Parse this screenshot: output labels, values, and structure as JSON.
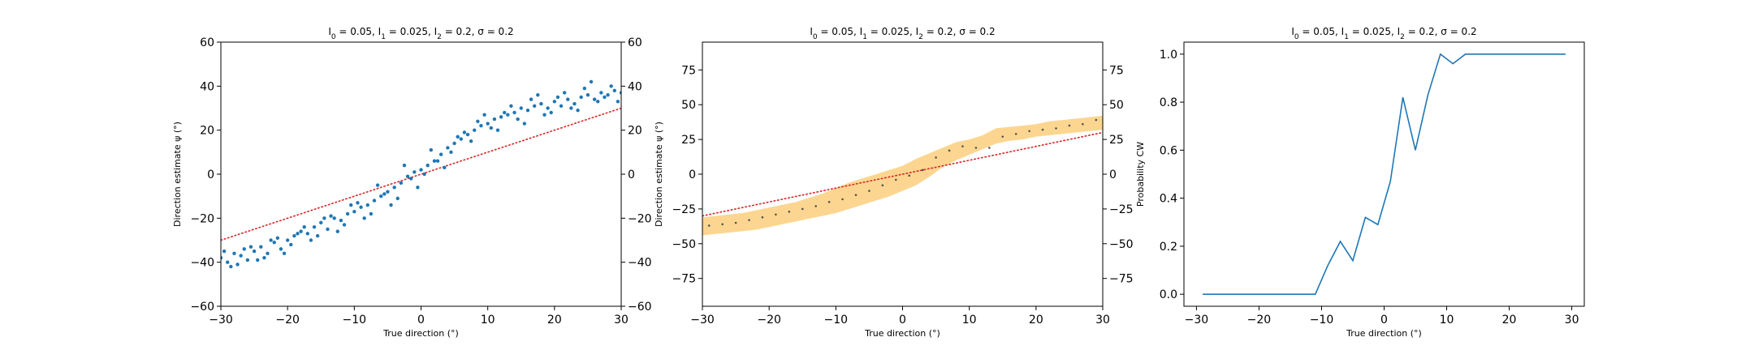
{
  "chart_data": [
    {
      "type": "scatter",
      "title": "I_0 = 0.05, I_1 = 0.025, I_2 = 0.2, σ = 0.2",
      "xlabel": "True direction (°)",
      "ylabel": "Direction estimate ψ (°)",
      "xlim": [
        -30,
        30
      ],
      "ylim": [
        -60,
        60
      ],
      "xticks": [
        "−30",
        "−20",
        "−10",
        "0",
        "10",
        "20",
        "30"
      ],
      "yticks": [
        "−60",
        "−40",
        "−20",
        "0",
        "20",
        "40",
        "60"
      ],
      "right_yticks": [
        "−60",
        "−40",
        "−20",
        "0",
        "20",
        "40",
        "60"
      ],
      "colors": {
        "points": "#1f77b4",
        "reference": "#d62728"
      },
      "reference_line": {
        "x": [
          -30,
          30
        ],
        "y": [
          -30,
          30
        ],
        "style": "dotted"
      },
      "series": [
        {
          "x": [
            -30,
            -29,
            -28,
            -27,
            -26,
            -25,
            -24,
            -23,
            -22,
            -21,
            -20,
            -19,
            -18,
            -17,
            -16,
            -15,
            -14,
            -13,
            -12,
            -11,
            -10,
            -9,
            -8,
            -7,
            -6,
            -5,
            -4,
            -3,
            -2,
            -1,
            0,
            1,
            2,
            3,
            4,
            5,
            6,
            7,
            8,
            9,
            10,
            11,
            12,
            13,
            14,
            15,
            16,
            17,
            18,
            19,
            20,
            21,
            22,
            23,
            24,
            25,
            26,
            27,
            28,
            29,
            30,
            -29.5,
            -27.5,
            -25.5,
            -23.5,
            -21.5,
            -19.5,
            -17.5,
            -15.5,
            -13.5,
            -11.5,
            -9.5,
            -7.5,
            -5.5,
            -3.5,
            -1.5,
            0.5,
            2.5,
            4.5,
            6.5,
            8.5,
            10.5,
            12.5,
            14.5,
            16.5,
            18.5,
            20.5,
            22.5,
            24.5,
            26.5,
            28.5,
            -28.5,
            -26.5,
            -24.5,
            -22.5,
            -20.5,
            -18.5,
            -16.5,
            -14.5,
            -12.5,
            -10.5,
            -8.5,
            -6.5,
            -4.5,
            -2.5,
            -0.5,
            1.5,
            3.5,
            5.5,
            7.5,
            9.5,
            11.5,
            13.5,
            15.5,
            17.5,
            19.5,
            21.5,
            23.5,
            25.5,
            27.5,
            29.5
          ],
          "y": [
            -38,
            -40,
            -36,
            -37,
            -39,
            -35,
            -33,
            -36,
            -31,
            -34,
            -30,
            -28,
            -26,
            -27,
            -24,
            -22,
            -25,
            -20,
            -21,
            -18,
            -17,
            -15,
            -14,
            -12,
            -10,
            -8,
            -6,
            -4,
            -1,
            1,
            2,
            4,
            6,
            9,
            12,
            14,
            16,
            18,
            20,
            22,
            23,
            25,
            26,
            27,
            28,
            30,
            29,
            31,
            32,
            30,
            33,
            31,
            34,
            32,
            35,
            36,
            34,
            37,
            36,
            38,
            37,
            -35,
            -41,
            -33,
            -38,
            -29,
            -32,
            -24,
            -28,
            -19,
            -23,
            -13,
            -18,
            -9,
            -11,
            -2,
            0,
            6,
            10,
            19,
            24,
            21,
            28,
            25,
            34,
            27,
            35,
            30,
            39,
            33,
            40,
            -42,
            -34,
            -39,
            -30,
            -36,
            -27,
            -30,
            -20,
            -26,
            -14,
            -20,
            -5,
            -14,
            4,
            -6,
            11,
            3,
            17,
            15,
            27,
            20,
            31,
            23,
            36,
            28,
            37,
            29,
            42,
            35,
            33
          ]
        }
      ]
    },
    {
      "type": "line",
      "title": "I_0 = 0.05, I_1 = 0.025, I_2 = 0.2, σ = 0.2",
      "xlabel": "True direction (°)",
      "ylabel": "Direction estimate ψ (°)",
      "xlim": [
        -30,
        30
      ],
      "ylim": [
        -95,
        95
      ],
      "xticks": [
        "−30",
        "−20",
        "−10",
        "0",
        "10",
        "20",
        "30"
      ],
      "yticks": [
        "−75",
        "−50",
        "−25",
        "0",
        "25",
        "50",
        "75"
      ],
      "right_yticks": [
        "−75",
        "−50",
        "−25",
        "0",
        "25",
        "50",
        "75"
      ],
      "colors": {
        "band": "#fbcf7d",
        "points": "#555555",
        "reference": "#d62728"
      },
      "reference_line": {
        "x": [
          -30,
          30
        ],
        "y": [
          -30,
          30
        ],
        "style": "dotted"
      },
      "band": {
        "x": [
          -30,
          -28,
          -26,
          -24,
          -22,
          -20,
          -18,
          -16,
          -14,
          -12,
          -10,
          -8,
          -6,
          -4,
          -2,
          0,
          2,
          4,
          6,
          8,
          10,
          12,
          14,
          16,
          18,
          20,
          22,
          24,
          26,
          28,
          30
        ],
        "lower": [
          -44,
          -43,
          -42,
          -41,
          -40,
          -38,
          -36,
          -34,
          -32,
          -30,
          -28,
          -25,
          -22,
          -19,
          -16,
          -12,
          -8,
          -2,
          5,
          10,
          14,
          18,
          22,
          24,
          25,
          27,
          28,
          29,
          30,
          31,
          32
        ],
        "upper": [
          -31,
          -30,
          -29,
          -28,
          -26,
          -24,
          -22,
          -20,
          -17,
          -14,
          -10,
          -6,
          -3,
          0,
          3,
          6,
          11,
          15,
          19,
          23,
          25,
          28,
          33,
          34,
          35,
          36,
          38,
          39,
          40,
          41,
          42
        ]
      },
      "series": [
        {
          "name": "",
          "x": [
            -29,
            -27,
            -25,
            -23,
            -21,
            -19,
            -17,
            -15,
            -13,
            -11,
            -9,
            -7,
            -5,
            -3,
            -1,
            1,
            3,
            5,
            7,
            9,
            11,
            13,
            15,
            17,
            19,
            21,
            23,
            25,
            27,
            29
          ],
          "y": [
            -37,
            -36,
            -35,
            -33,
            -31,
            -29,
            -27,
            -25,
            -23,
            -20,
            -18,
            -15,
            -12,
            -8,
            -4,
            -1,
            3,
            12,
            17,
            20,
            19,
            19,
            27,
            29,
            31,
            32,
            33,
            35,
            36,
            39
          ]
        }
      ]
    },
    {
      "type": "line",
      "title": "I_0 = 0.05, I_1 = 0.025, I_2 = 0.2, σ = 0.2",
      "xlabel": "True direction (°)",
      "ylabel": "Probability CW",
      "xlim": [
        -32,
        32
      ],
      "ylim": [
        -0.05,
        1.05
      ],
      "xticks": [
        "−30",
        "−20",
        "−10",
        "0",
        "10",
        "20",
        "30"
      ],
      "yticks": [
        "0.0",
        "0.2",
        "0.4",
        "0.6",
        "0.8",
        "1.0"
      ],
      "colors": {
        "line": "#1f77b4"
      },
      "series": [
        {
          "name": "",
          "x": [
            -29,
            -27,
            -25,
            -23,
            -21,
            -19,
            -17,
            -15,
            -13,
            -11,
            -9,
            -7,
            -5,
            -3,
            -1,
            1,
            3,
            5,
            7,
            9,
            11,
            13,
            15,
            17,
            19,
            21,
            23,
            25,
            27,
            29
          ],
          "y": [
            0,
            0,
            0,
            0,
            0,
            0,
            0,
            0,
            0,
            0,
            0.12,
            0.22,
            0.14,
            0.32,
            0.29,
            0.47,
            0.82,
            0.6,
            0.83,
            1.0,
            0.96,
            1.0,
            1.0,
            1.0,
            1.0,
            1.0,
            1.0,
            1.0,
            1.0,
            1.0
          ]
        }
      ]
    }
  ]
}
